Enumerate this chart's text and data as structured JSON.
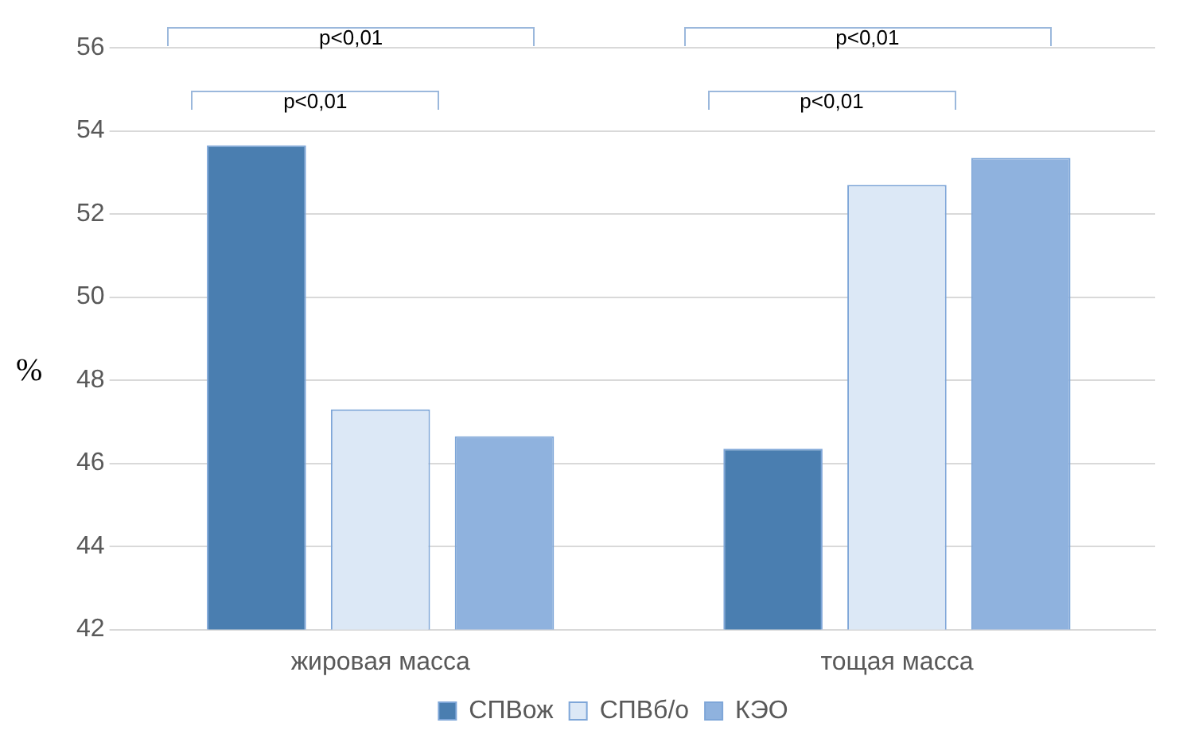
{
  "chart_data": {
    "type": "bar",
    "ylabel": "%",
    "categories": [
      "жировая масса",
      "тощая масса"
    ],
    "series": [
      {
        "name": "СПВож",
        "color": "#4a7eb0",
        "values": [
          53.65,
          46.35
        ]
      },
      {
        "name": "СПВб/о",
        "color": "#dce8f6",
        "values": [
          47.3,
          52.7
        ]
      },
      {
        "name": "КЭО",
        "color": "#8fb2de",
        "values": [
          46.65,
          53.35
        ]
      }
    ],
    "ylim": [
      42,
      56
    ],
    "yticks": [
      42,
      44,
      46,
      48,
      50,
      52,
      54,
      56
    ],
    "grid": "y",
    "legend": "bottom",
    "annotations": [
      "p<0,01",
      "p<0,01",
      "p<0,01",
      "p<0,01"
    ]
  }
}
